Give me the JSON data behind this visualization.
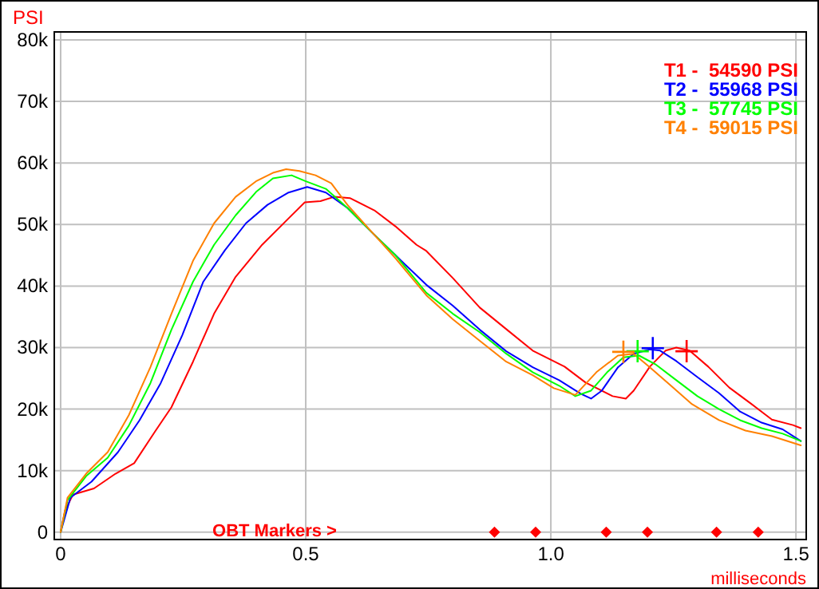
{
  "chart_data": {
    "type": "line",
    "xlabel": "milliseconds",
    "ylabel": "PSI",
    "annotations": [
      "OBT Markers >"
    ],
    "xlim": [
      -0.013,
      1.521
    ],
    "ylim": [
      -1200,
      81300
    ],
    "xticks": [
      0,
      0.5,
      {
        "value": 1,
        "label": "1.0"
      },
      1.5
    ],
    "yticks": [
      0,
      {
        "value": 10000,
        "label": "10k"
      },
      {
        "value": 20000,
        "label": "20k"
      },
      {
        "value": 30000,
        "label": "30k"
      },
      {
        "value": 40000,
        "label": "40k"
      },
      {
        "value": 50000,
        "label": "50k"
      },
      {
        "value": 60000,
        "label": "60k"
      },
      {
        "value": 70000,
        "label": "70k"
      },
      {
        "value": 80000,
        "label": "80k"
      }
    ],
    "grid": true,
    "legend": "top right",
    "marker": "none",
    "line_style": "solid",
    "series": [
      {
        "name": "T1 -  54590 PSI",
        "color": "#ff0000",
        "x": [
          0,
          0.009,
          0.025,
          0.068,
          0.112,
          0.15,
          0.193,
          0.226,
          0.27,
          0.313,
          0.357,
          0.411,
          0.465,
          0.498,
          0.53,
          0.558,
          0.59,
          0.64,
          0.683,
          0.726,
          0.746,
          0.8,
          0.855,
          0.909,
          0.963,
          1.028,
          1.071,
          1.126,
          1.153,
          1.169,
          1.202,
          1.234,
          1.256,
          1.283,
          1.321,
          1.364,
          1.408,
          1.451,
          1.494,
          1.51
        ],
        "values": [
          0,
          3500,
          6100,
          7100,
          9500,
          11200,
          16400,
          20300,
          27700,
          35500,
          41500,
          46700,
          51000,
          53600,
          53800,
          54500,
          54300,
          52300,
          49700,
          46700,
          45700,
          41300,
          36500,
          33000,
          29500,
          26900,
          24300,
          22100,
          21700,
          23000,
          26900,
          29500,
          30000,
          29500,
          26900,
          23500,
          20900,
          18300,
          17400,
          16900
        ]
      },
      {
        "name": "T2 -  55968 PSI",
        "color": "#0000ff",
        "x": [
          0,
          0.02,
          0.063,
          0.117,
          0.161,
          0.204,
          0.248,
          0.291,
          0.335,
          0.378,
          0.422,
          0.465,
          0.503,
          0.541,
          0.585,
          0.639,
          0.683,
          0.746,
          0.8,
          0.855,
          0.909,
          0.963,
          1.017,
          1.061,
          1.082,
          1.104,
          1.137,
          1.169,
          1.202,
          1.223,
          1.256,
          1.299,
          1.343,
          1.386,
          1.43,
          1.473,
          1.51
        ],
        "values": [
          0,
          5600,
          8200,
          13000,
          18200,
          24200,
          32000,
          40700,
          45800,
          50200,
          53200,
          55200,
          56100,
          55200,
          52700,
          48400,
          45000,
          40200,
          36800,
          32900,
          29400,
          26800,
          24700,
          22500,
          21700,
          23000,
          26800,
          29000,
          29700,
          29500,
          27800,
          25200,
          22600,
          19600,
          17800,
          16700,
          14800
        ]
      },
      {
        "name": "T3 -  57745 PSI",
        "color": "#00ff00",
        "x": [
          0,
          0.014,
          0.052,
          0.096,
          0.139,
          0.183,
          0.226,
          0.27,
          0.313,
          0.357,
          0.4,
          0.433,
          0.471,
          0.498,
          0.541,
          0.585,
          0.639,
          0.683,
          0.746,
          0.8,
          0.855,
          0.909,
          0.963,
          1.017,
          1.05,
          1.082,
          1.115,
          1.148,
          1.18,
          1.213,
          1.256,
          1.299,
          1.343,
          1.386,
          1.43,
          1.473,
          1.51
        ],
        "values": [
          0,
          5200,
          9100,
          12100,
          17300,
          24200,
          32900,
          40700,
          46700,
          51500,
          55400,
          57500,
          58000,
          57100,
          55800,
          52700,
          48400,
          45000,
          38900,
          35500,
          32500,
          29000,
          26000,
          23800,
          22100,
          23000,
          26000,
          28400,
          28700,
          27300,
          24700,
          22100,
          20000,
          18200,
          16900,
          16000,
          14800
        ]
      },
      {
        "name": "T4 -  59015 PSI",
        "color": "#ff8000",
        "x": [
          0,
          0.014,
          0.052,
          0.096,
          0.139,
          0.183,
          0.226,
          0.27,
          0.313,
          0.357,
          0.4,
          0.433,
          0.46,
          0.487,
          0.52,
          0.552,
          0.585,
          0.639,
          0.683,
          0.746,
          0.8,
          0.855,
          0.909,
          0.963,
          1.006,
          1.05,
          1.093,
          1.137,
          1.169,
          1.202,
          1.245,
          1.288,
          1.343,
          1.397,
          1.451,
          1.51
        ],
        "values": [
          0,
          5600,
          9500,
          13000,
          19000,
          26800,
          35500,
          44100,
          50200,
          54500,
          57100,
          58400,
          59000,
          58700,
          58000,
          56700,
          53200,
          48400,
          44500,
          38500,
          34600,
          31100,
          27700,
          25500,
          23400,
          22300,
          26000,
          28700,
          29000,
          26800,
          23800,
          20800,
          18200,
          16500,
          15600,
          14100
        ]
      },
      {
        "type": "scatter",
        "marker": "cross",
        "colors": [
          "#ff0000",
          "#0000ff",
          "#00ff00",
          "#ff8000"
        ],
        "x": [
          1.277,
          1.208,
          1.177,
          1.148
        ],
        "values": [
          29400,
          29900,
          29400,
          29300
        ]
      },
      {
        "type": "scatter",
        "marker": "diamond",
        "color": "#ff0000",
        "x": [
          0.885,
          0.969,
          1.113,
          1.197,
          1.338,
          1.423
        ],
        "values": [
          0,
          0,
          0,
          0,
          0,
          0
        ]
      }
    ]
  }
}
